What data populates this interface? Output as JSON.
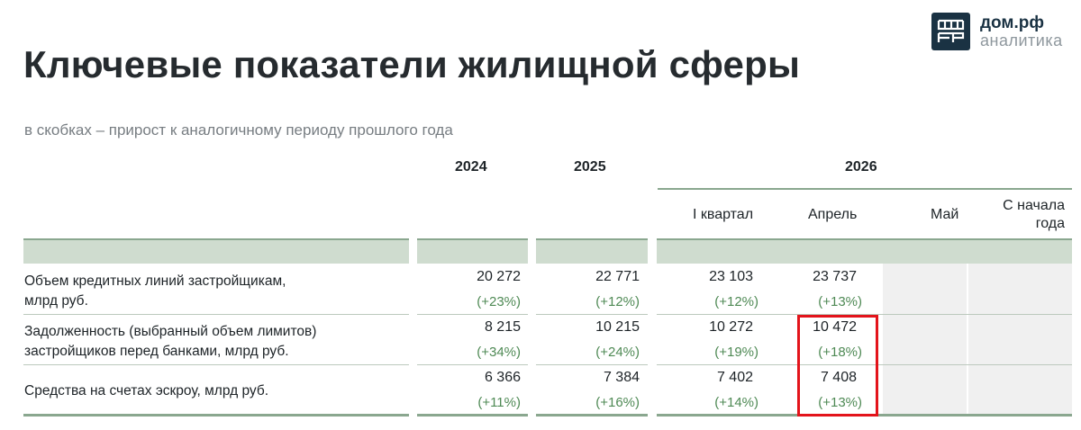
{
  "title": "Ключевые показатели жилищной сферы",
  "subtitle": "в скобках – прирост к аналогичному периоду прошлого года",
  "logo": {
    "line1": "дом.рф",
    "line2": "аналитика",
    "brand_color": "#1a3243"
  },
  "table": {
    "years": [
      "2024",
      "2025",
      "2026"
    ],
    "subheaders_2026": [
      "I квартал",
      "Апрель",
      "Май",
      "С начала года"
    ],
    "rows": [
      {
        "label_line1": "Объем кредитных линий застройщикам,",
        "label_line2": "млрд руб.",
        "values": [
          "20 272",
          "22 771",
          "23 103",
          "23 737"
        ],
        "changes": [
          "(+23%)",
          "(+12%)",
          "(+12%)",
          "(+13%)"
        ]
      },
      {
        "label_line1": "Задолженность (выбранный объем лимитов)",
        "label_line2": "застройщиков перед банками, млрд руб.",
        "values": [
          "8 215",
          "10 215",
          "10 272",
          "10 472"
        ],
        "changes": [
          "(+34%)",
          "(+24%)",
          "(+19%)",
          "(+18%)"
        ]
      },
      {
        "label_line1": "Средства на счетах эскроу, млрд руб.",
        "label_line2": "",
        "values": [
          "6 366",
          "7 384",
          "7 402",
          "7 408"
        ],
        "changes": [
          "(+11%)",
          "(+16%)",
          "(+14%)",
          "(+13%)"
        ]
      }
    ]
  },
  "colors": {
    "accent_green": "#8aa78f",
    "band_fill": "#cfdccf",
    "change_text": "#4f8a55",
    "highlight": "#e3141b"
  }
}
